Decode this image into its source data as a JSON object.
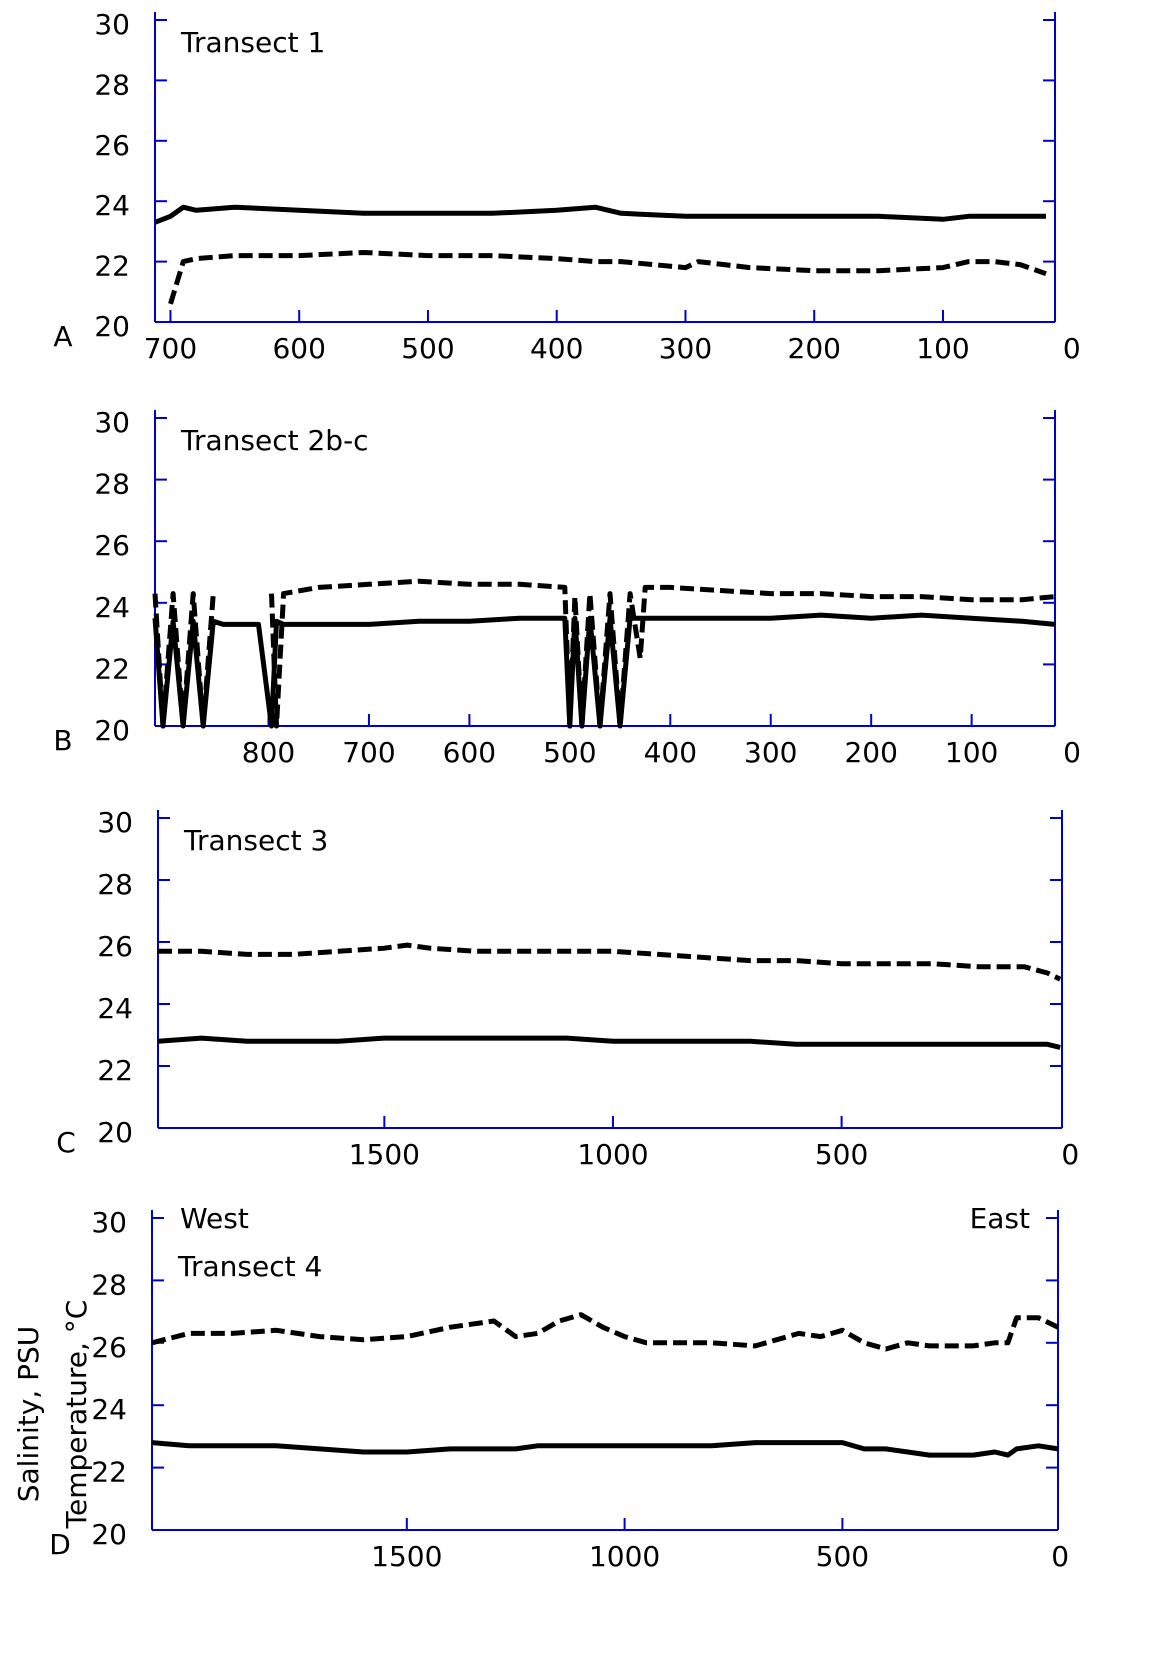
{
  "chart_data": [
    {
      "type": "line",
      "panel": "A",
      "title": "Transect 1",
      "x": [
        712,
        700,
        690,
        680,
        650,
        600,
        550,
        500,
        450,
        400,
        370,
        350,
        300,
        290,
        250,
        200,
        150,
        100,
        80,
        60,
        40,
        20
      ],
      "series": [
        {
          "color": "#000000",
          "dashed": false,
          "values": [
            23.3,
            23.5,
            23.8,
            23.7,
            23.8,
            23.7,
            23.6,
            23.6,
            23.6,
            23.7,
            23.8,
            23.6,
            23.5,
            23.5,
            23.5,
            23.5,
            23.5,
            23.4,
            23.5,
            23.5,
            23.5,
            23.5
          ]
        },
        {
          "color": "#000000",
          "dashed": true,
          "values": [
            null,
            20.6,
            22.0,
            22.1,
            22.2,
            22.2,
            22.3,
            22.2,
            22.2,
            22.1,
            22.0,
            22.0,
            21.8,
            22.0,
            21.8,
            21.7,
            21.7,
            21.8,
            22.0,
            22.0,
            21.9,
            21.6
          ]
        }
      ],
      "xlim": [
        712,
        13
      ],
      "xticks": [
        700,
        600,
        500,
        400,
        300,
        200,
        100,
        0
      ],
      "ylim": [
        20,
        30
      ],
      "yticks": [
        20,
        22,
        24,
        26,
        28,
        30
      ]
    },
    {
      "type": "line",
      "panel": "B",
      "title": "Transect 2b-c",
      "x": [
        913,
        905,
        895,
        885,
        875,
        865,
        855,
        845,
        810,
        797,
        792,
        785,
        750,
        700,
        650,
        600,
        550,
        505,
        500,
        495,
        488,
        480,
        470,
        460,
        450,
        440,
        430,
        425,
        400,
        350,
        300,
        250,
        200,
        150,
        100,
        50,
        17
      ],
      "series": [
        {
          "color": "#000000",
          "dashed": false,
          "values": [
            23.5,
            20.0,
            23.4,
            20.0,
            23.4,
            20.0,
            23.4,
            23.3,
            23.3,
            20.0,
            23.4,
            23.3,
            23.3,
            23.3,
            23.4,
            23.4,
            23.5,
            23.5,
            20.0,
            23.5,
            20.0,
            23.5,
            20.0,
            23.5,
            20.0,
            23.5,
            23.5,
            23.5,
            23.5,
            23.5,
            23.5,
            23.6,
            23.5,
            23.6,
            23.5,
            23.4,
            23.3
          ]
        },
        {
          "color": "#000000",
          "dashed": true,
          "values": [
            24.3,
            20.0,
            24.3,
            20.0,
            24.3,
            20.0,
            24.3,
            null,
            null,
            24.3,
            20.0,
            24.3,
            24.5,
            24.6,
            24.7,
            24.6,
            24.6,
            24.5,
            20.0,
            24.2,
            20.0,
            24.3,
            20.0,
            24.3,
            20.0,
            24.3,
            22.2,
            24.5,
            24.5,
            24.4,
            24.3,
            24.3,
            24.2,
            24.2,
            24.1,
            24.1,
            24.2
          ]
        }
      ],
      "xlim": [
        913,
        17
      ],
      "xticks": [
        800,
        700,
        600,
        500,
        400,
        300,
        200,
        100,
        0
      ],
      "ylim": [
        20,
        30
      ],
      "yticks": [
        20,
        22,
        24,
        26,
        28,
        30
      ]
    },
    {
      "type": "line",
      "panel": "C",
      "title": "Transect 3",
      "x": [
        1995,
        1900,
        1800,
        1700,
        1600,
        1500,
        1450,
        1400,
        1300,
        1200,
        1100,
        1000,
        900,
        800,
        700,
        600,
        500,
        400,
        300,
        200,
        100,
        50,
        22
      ],
      "series": [
        {
          "color": "#000000",
          "dashed": false,
          "values": [
            22.8,
            22.9,
            22.8,
            22.8,
            22.8,
            22.9,
            22.9,
            22.9,
            22.9,
            22.9,
            22.9,
            22.8,
            22.8,
            22.8,
            22.8,
            22.7,
            22.7,
            22.7,
            22.7,
            22.7,
            22.7,
            22.7,
            22.6
          ]
        },
        {
          "color": "#000000",
          "dashed": true,
          "values": [
            25.7,
            25.7,
            25.6,
            25.6,
            25.7,
            25.8,
            25.9,
            25.8,
            25.7,
            25.7,
            25.7,
            25.7,
            25.6,
            25.5,
            25.4,
            25.4,
            25.3,
            25.3,
            25.3,
            25.2,
            25.2,
            25.0,
            24.8
          ]
        }
      ],
      "xlim": [
        1995,
        18
      ],
      "xticks": [
        1500,
        1000,
        500,
        0
      ],
      "ylim": [
        20,
        30
      ],
      "yticks": [
        20,
        22,
        24,
        26,
        28,
        30
      ]
    },
    {
      "type": "line",
      "panel": "D",
      "title": "Transect 4",
      "left_note": "West",
      "right_note": "East",
      "ylabels": [
        "Salinity, PSU",
        "Temperature, °C"
      ],
      "x": [
        2085,
        2000,
        1900,
        1800,
        1700,
        1600,
        1500,
        1400,
        1300,
        1250,
        1200,
        1150,
        1100,
        1050,
        1000,
        950,
        900,
        800,
        700,
        600,
        550,
        500,
        450,
        400,
        350,
        300,
        250,
        200,
        150,
        120,
        100,
        50,
        5
      ],
      "series": [
        {
          "color": "#000000",
          "dashed": false,
          "values": [
            22.8,
            22.7,
            22.7,
            22.7,
            22.6,
            22.5,
            22.5,
            22.6,
            22.6,
            22.6,
            22.7,
            22.7,
            22.7,
            22.7,
            22.7,
            22.7,
            22.7,
            22.7,
            22.8,
            22.8,
            22.8,
            22.8,
            22.6,
            22.6,
            22.5,
            22.4,
            22.4,
            22.4,
            22.5,
            22.4,
            22.6,
            22.7,
            22.6
          ]
        },
        {
          "color": "#000000",
          "dashed": true,
          "values": [
            26.0,
            26.3,
            26.3,
            26.4,
            26.2,
            26.1,
            26.2,
            26.5,
            26.7,
            26.2,
            26.3,
            26.7,
            26.9,
            26.5,
            26.2,
            26.0,
            26.0,
            26.0,
            25.9,
            26.3,
            26.2,
            26.4,
            26.0,
            25.8,
            26.0,
            25.9,
            25.9,
            25.9,
            26.0,
            26.0,
            26.8,
            26.8,
            26.5
          ]
        }
      ],
      "xlim": [
        2085,
        5
      ],
      "xticks": [
        1500,
        1000,
        500,
        0
      ],
      "ylim": [
        20,
        30
      ],
      "yticks": [
        20,
        22,
        24,
        26,
        28,
        30
      ]
    }
  ]
}
